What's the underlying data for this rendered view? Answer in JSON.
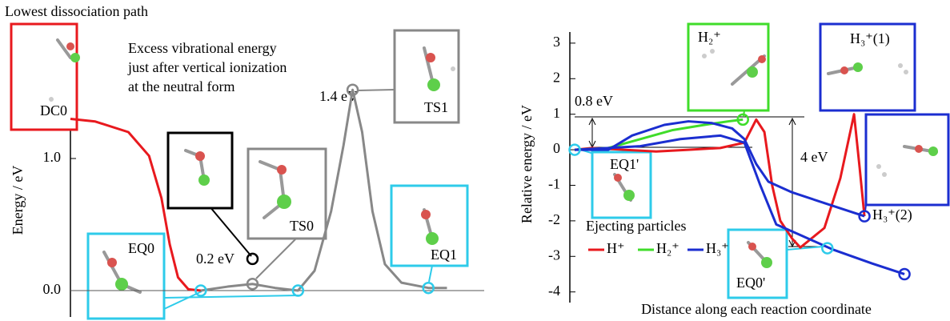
{
  "chart_data": [
    {
      "type": "line",
      "title": "Lowest dissociation path",
      "annotation": [
        "Excess vibrational energy",
        "just after vertical ionization",
        "at the neutral form"
      ],
      "peak_label": "1.4 eV",
      "excess_label": "0.2 eV",
      "y_label": "Energy / eV",
      "xlim": [
        0,
        100
      ],
      "ylim": [
        -0.2,
        1.6
      ],
      "yticks": [
        {
          "value": 0,
          "label": "0.0"
        },
        {
          "value": 1,
          "label": "1.0"
        }
      ],
      "series": [
        {
          "color": "#e8191e",
          "x": [
            0,
            6,
            14,
            19,
            22,
            24,
            26,
            28.5,
            31.5
          ],
          "values": [
            1.3,
            1.28,
            1.2,
            1.02,
            0.7,
            0.35,
            0.1,
            0.01,
            0.0
          ]
        },
        {
          "color": "#888888",
          "x": [
            31.5,
            38,
            44,
            49.5,
            55,
            59,
            63,
            66,
            68.2,
            70.5,
            73,
            76,
            80,
            86.5,
            91
          ],
          "values": [
            0,
            0.03,
            0.05,
            0.02,
            0,
            0.15,
            0.6,
            1.1,
            1.52,
            1.2,
            0.6,
            0.2,
            0.06,
            0.02,
            0.02
          ]
        }
      ],
      "markers": [
        {
          "x": 31.5,
          "y": 0,
          "color": "#2ecbea"
        },
        {
          "x": 44,
          "y": 0.05,
          "color": "#888888"
        },
        {
          "x": 55,
          "y": 0,
          "color": "#2ecbea"
        },
        {
          "x": 68.2,
          "y": 1.52,
          "color": "#888888"
        },
        {
          "x": 86.5,
          "y": 0.02,
          "color": "#2ecbea"
        },
        {
          "x": 44,
          "y": 0.24,
          "color": "#000000"
        }
      ],
      "structures": [
        "DC0",
        "EQ0",
        "TS0",
        "TS1",
        "EQ1"
      ]
    },
    {
      "type": "line",
      "y_label": "Relative energy / eV",
      "x_label": "Distance along each reaction coordinate",
      "legend_title": "Ejecting particles",
      "barrier_label": "0.8 eV",
      "drop_label": "4 eV",
      "xlim": [
        0,
        100
      ],
      "ylim": [
        -4.3,
        3.2
      ],
      "yticks": [
        3,
        2,
        1,
        0,
        -1,
        -2,
        -3,
        -4
      ],
      "series": [
        {
          "name": "H⁺",
          "color": "#e8191e",
          "x": [
            1.3,
            6,
            14.7,
            23.3,
            32,
            40.6,
            47.1,
            50.3,
            52.5,
            54.6,
            56.8,
            60,
            62.2,
            68.7,
            73,
            76.7,
            78.2,
            79.5
          ],
          "values": [
            0,
            0.05,
            0,
            -0.05,
            0,
            0.05,
            0.2,
            0.85,
            0.5,
            -1.0,
            -2.0,
            -2.5,
            -2.75,
            -2.2,
            -0.8,
            1.0,
            -0.5,
            -1.87
          ]
        },
        {
          "name": "H₂⁺",
          "color": "#3fdc2a",
          "x": [
            1.3,
            10.4,
            19,
            27.6,
            36.3,
            42.8,
            46.7
          ],
          "values": [
            0,
            0.05,
            0.3,
            0.55,
            0.7,
            0.8,
            0.85
          ]
        },
        {
          "name": "H₃⁺",
          "color": "#1b2ed0",
          "x": [
            1.3,
            10.4,
            16.8,
            25.5,
            32,
            38.4,
            43.8,
            47.1,
            50.3,
            53.6,
            60,
            68.7,
            79.5
          ],
          "values": [
            0,
            0,
            0.4,
            0.7,
            0.8,
            0.75,
            0.6,
            0.3,
            -0.4,
            -0.9,
            -1.2,
            -1.5,
            -1.87
          ]
        },
        {
          "color": "#1b2ed0",
          "x": [
            1.3,
            10.4,
            19,
            29.8,
            40.6,
            47.1,
            51.4,
            55.7,
            62.2,
            70.8,
            81.6,
            90.3
          ],
          "values": [
            0,
            0.05,
            0.1,
            0.3,
            0.4,
            0.2,
            -1.0,
            -2.1,
            -2.4,
            -2.8,
            -3.2,
            -3.5
          ]
        }
      ],
      "markers": [
        {
          "x": 1.3,
          "y": 0,
          "color": "#2ecbea"
        },
        {
          "x": 46.7,
          "y": 0.85,
          "color": "#3fdc2a"
        },
        {
          "x": 69.5,
          "y": -2.77,
          "color": "#2ecbea"
        },
        {
          "x": 79.5,
          "y": -1.87,
          "color": "#1b2ed0"
        },
        {
          "x": 90.3,
          "y": -3.5,
          "color": "#1b2ed0"
        }
      ],
      "structures": [
        "H₂⁺",
        "H₃⁺(1)",
        "H₃⁺(2)",
        "EQ1'",
        "EQ0'"
      ]
    }
  ]
}
